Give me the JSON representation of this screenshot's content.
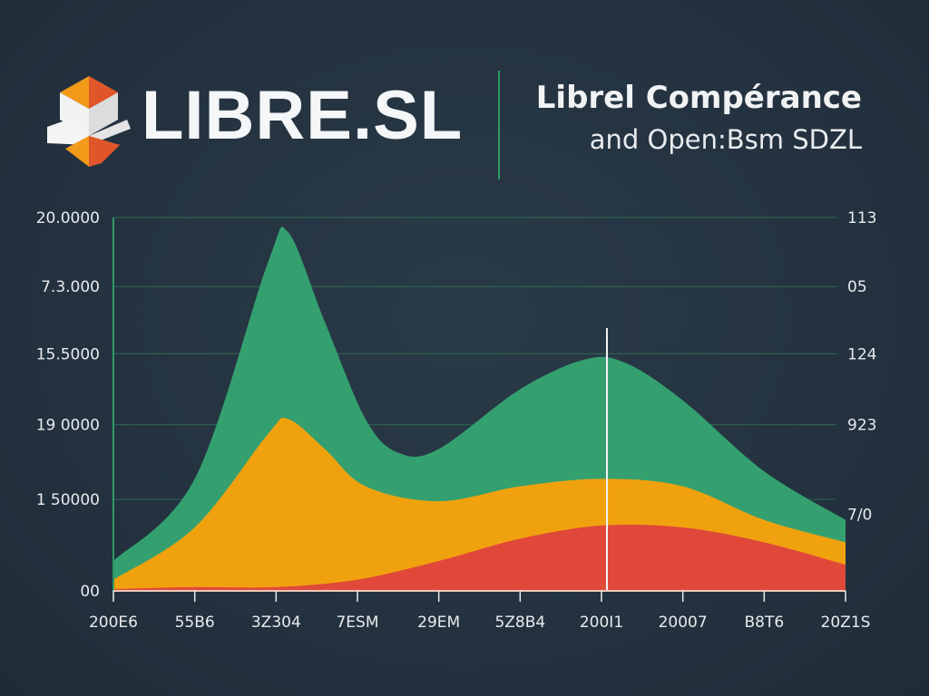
{
  "logo": {
    "text": "LIBRE.SL"
  },
  "header": {
    "title": "Librel Compérance",
    "subtitle": "and  Open:Bsm SDZL"
  },
  "chart_data": {
    "type": "area",
    "stacked": false,
    "title": "Librel Compérance",
    "subtitle": "and  Open:Bsm SDZL",
    "xlabel": "",
    "ylabel": "",
    "x_tick_labels": [
      "200E6",
      "55B6",
      "3Z304",
      "7ESM",
      "29EM",
      "5Z8B4",
      "200I1",
      "20007",
      "B8T6",
      "20Z1S"
    ],
    "y_tick_labels_left": [
      "00",
      "1 50000",
      "19 0000",
      "15.5000",
      "7.3.000",
      "20.0000"
    ],
    "y_tick_labels_right": [
      "7/0",
      "923",
      "124",
      "05",
      "113"
    ],
    "ylim": [
      0,
      100
    ],
    "xlim": [
      0,
      9
    ],
    "grid": true,
    "legend": "none",
    "marker_x": 6,
    "series": [
      {
        "color": "#34a070",
        "points": [
          [
            0,
            8
          ],
          [
            1,
            30
          ],
          [
            1.9,
            88
          ],
          [
            2.15,
            96
          ],
          [
            2.6,
            72
          ],
          [
            3.1,
            46
          ],
          [
            3.5,
            37
          ],
          [
            4,
            38
          ],
          [
            5,
            54
          ],
          [
            5.8,
            62
          ],
          [
            6.3,
            61
          ],
          [
            7,
            51
          ],
          [
            8,
            32
          ],
          [
            9,
            19
          ]
        ]
      },
      {
        "color": "#f0a20e",
        "points": [
          [
            0,
            3
          ],
          [
            1,
            17
          ],
          [
            1.9,
            42
          ],
          [
            2.15,
            46
          ],
          [
            2.6,
            38
          ],
          [
            3.1,
            28
          ],
          [
            4,
            24
          ],
          [
            5,
            28
          ],
          [
            6,
            30
          ],
          [
            7,
            28
          ],
          [
            8,
            19
          ],
          [
            9,
            13
          ]
        ]
      },
      {
        "color": "#e0483a",
        "points": [
          [
            0,
            0.5
          ],
          [
            1,
            1
          ],
          [
            2,
            1
          ],
          [
            3,
            3
          ],
          [
            4,
            8
          ],
          [
            5,
            14
          ],
          [
            6,
            17.5
          ],
          [
            7,
            17
          ],
          [
            8,
            13
          ],
          [
            9,
            7
          ]
        ]
      }
    ]
  }
}
